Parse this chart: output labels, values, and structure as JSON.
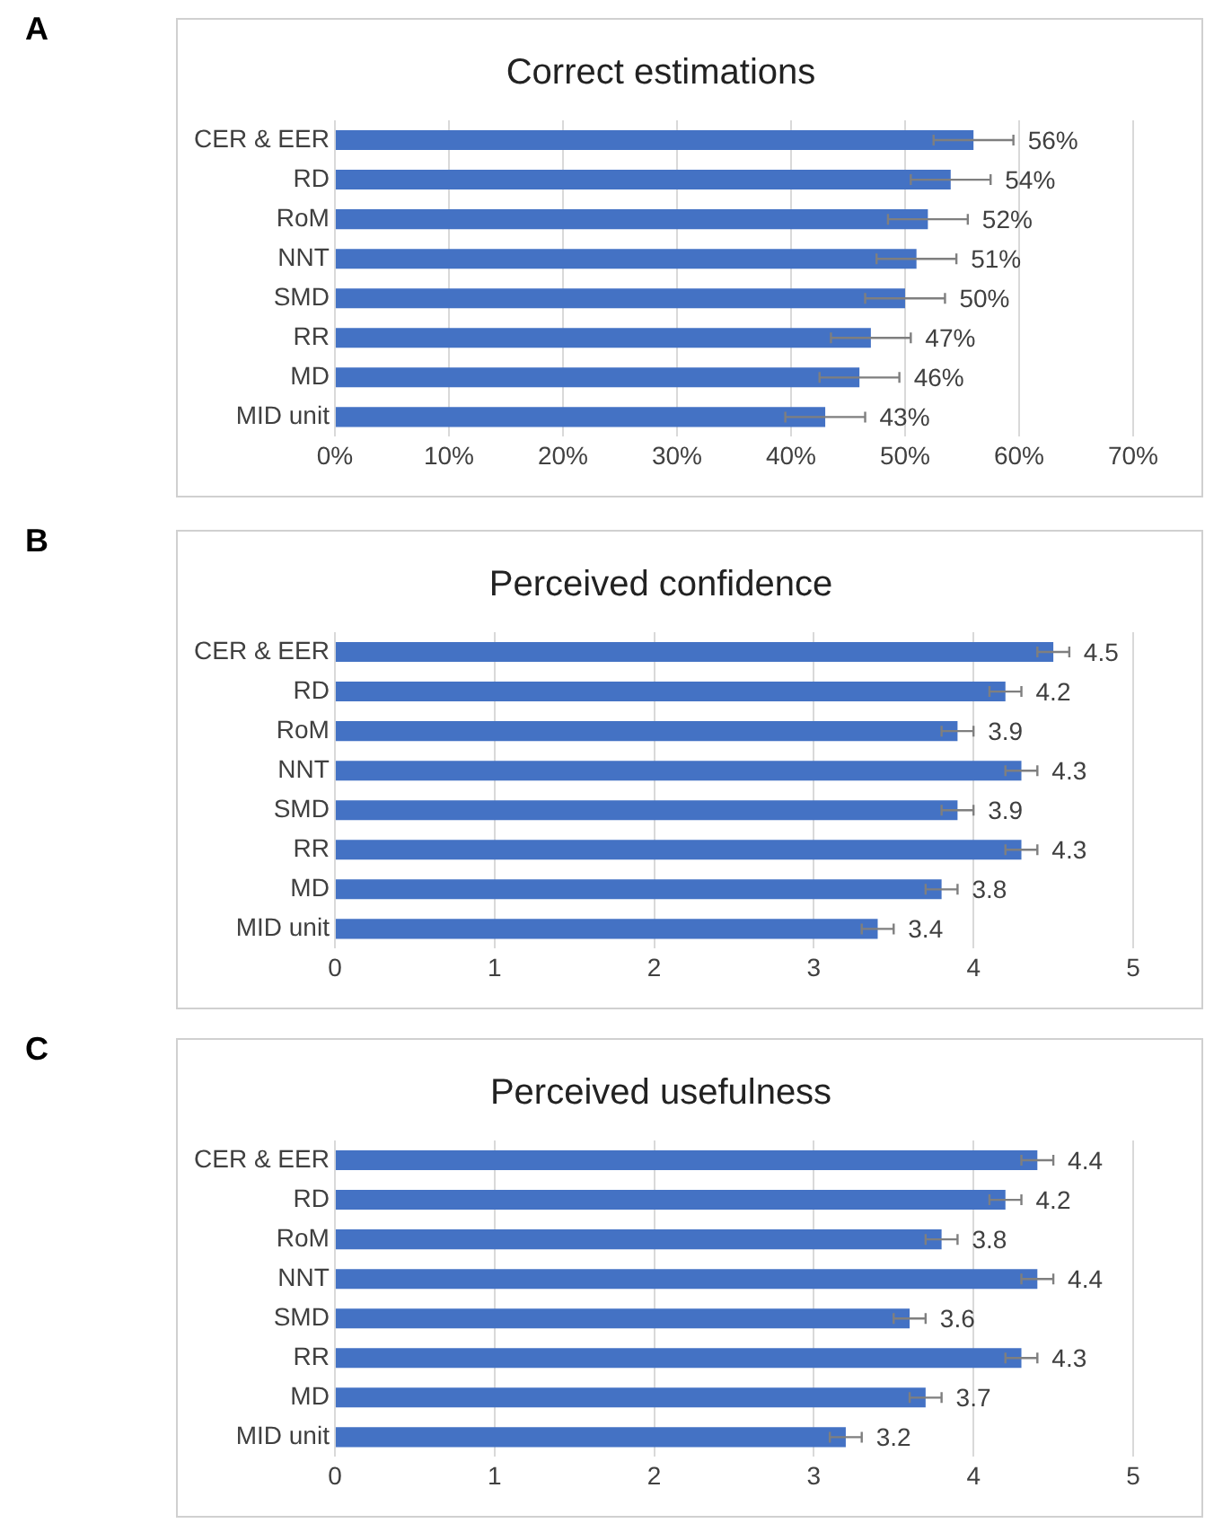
{
  "chart_data": [
    {
      "type": "bar",
      "orientation": "horizontal",
      "title": "Correct estimations",
      "annotations": [
        "A"
      ],
      "categories": [
        "CER & EER",
        "RD",
        "RoM",
        "NNT",
        "SMD",
        "RR",
        "MD",
        "MID unit"
      ],
      "values": [
        56,
        54,
        52,
        51,
        50,
        47,
        46,
        43
      ],
      "color": "#4472c4",
      "errors": [
        3.5,
        3.5,
        3.5,
        3.5,
        3.5,
        3.5,
        3.5,
        3.5
      ],
      "value_labels": [
        "56%",
        "54%",
        "52%",
        "51%",
        "50%",
        "47%",
        "46%",
        "43%"
      ],
      "xlim": [
        0,
        70
      ],
      "xticks": [
        {
          "value": 0,
          "label": "0%"
        },
        {
          "value": 10,
          "label": "10%"
        },
        {
          "value": 20,
          "label": "20%"
        },
        {
          "value": 30,
          "label": "30%"
        },
        {
          "value": 40,
          "label": "40%"
        },
        {
          "value": 50,
          "label": "50%"
        },
        {
          "value": 60,
          "label": "60%"
        },
        {
          "value": 70,
          "label": "70%"
        }
      ],
      "grid": "x"
    },
    {
      "type": "bar",
      "orientation": "horizontal",
      "title": "Perceived confidence",
      "annotations": [
        "B"
      ],
      "categories": [
        "CER & EER",
        "RD",
        "RoM",
        "NNT",
        "SMD",
        "RR",
        "MD",
        "MID unit"
      ],
      "values": [
        4.5,
        4.2,
        3.9,
        4.3,
        3.9,
        4.3,
        3.8,
        3.4
      ],
      "color": "#4472c4",
      "errors": [
        0.1,
        0.1,
        0.1,
        0.1,
        0.1,
        0.1,
        0.1,
        0.1
      ],
      "data_labels": true,
      "xlim": [
        0,
        5
      ],
      "xticks": [
        0,
        1,
        2,
        3,
        4,
        5
      ],
      "grid": "x"
    },
    {
      "type": "bar",
      "orientation": "horizontal",
      "title": "Perceived usefulness",
      "annotations": [
        "C"
      ],
      "categories": [
        "CER & EER",
        "RD",
        "RoM",
        "NNT",
        "SMD",
        "RR",
        "MD",
        "MID unit"
      ],
      "values": [
        4.4,
        4.2,
        3.8,
        4.4,
        3.6,
        4.3,
        3.7,
        3.2
      ],
      "color": "#4472c4",
      "errors": [
        0.1,
        0.1,
        0.1,
        0.1,
        0.1,
        0.1,
        0.1,
        0.1
      ],
      "data_labels": true,
      "xlim": [
        0,
        5
      ],
      "xticks": [
        0,
        1,
        2,
        3,
        4,
        5
      ],
      "grid": "x"
    }
  ]
}
